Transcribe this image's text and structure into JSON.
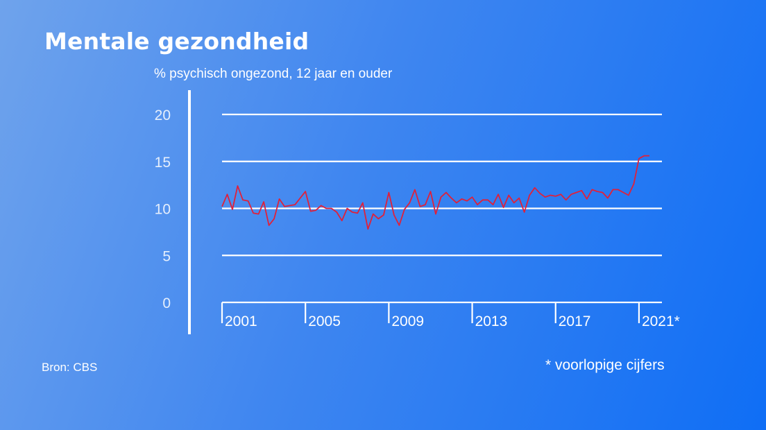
{
  "title": "Mentale gezondheid",
  "subtitle": "% psychisch ongezond, 12 jaar en ouder",
  "source": "Bron: CBS",
  "footnote": "* voorlopige cijfers",
  "colors": {
    "line": "#e0203a",
    "axis": "#ffffff"
  },
  "chart_data": {
    "type": "line",
    "title": "Mentale gezondheid",
    "ylabel": "% psychisch ongezond, 12 jaar en ouder",
    "xlabel": "",
    "ylim": [
      0,
      20
    ],
    "yticks": [
      0,
      5,
      10,
      15,
      20
    ],
    "xlim": [
      2001,
      2022.1
    ],
    "xtick_values": [
      2001,
      2005,
      2009,
      2013,
      2017,
      2021
    ],
    "xtick_labels": [
      "2001",
      "2005",
      "2009",
      "2013",
      "2017",
      "2021*"
    ],
    "grid": true,
    "series": [
      {
        "x": [
          2001.0,
          2001.25,
          2001.5,
          2001.75,
          2002.0,
          2002.25,
          2002.5,
          2002.75,
          2003.0,
          2003.25,
          2003.5,
          2003.75,
          2004.0,
          2004.25,
          2004.5,
          2004.75,
          2005.0,
          2005.25,
          2005.5,
          2005.75,
          2006.0,
          2006.25,
          2006.5,
          2006.75,
          2007.0,
          2007.25,
          2007.5,
          2007.75,
          2008.0,
          2008.25,
          2008.5,
          2008.75,
          2009.0,
          2009.25,
          2009.5,
          2009.75,
          2010.0,
          2010.25,
          2010.5,
          2010.75,
          2011.0,
          2011.25,
          2011.5,
          2011.75,
          2012.0,
          2012.25,
          2012.5,
          2012.75,
          2013.0,
          2013.25,
          2013.5,
          2013.75,
          2014.0,
          2014.25,
          2014.5,
          2014.75,
          2015.0,
          2015.25,
          2015.5,
          2015.75,
          2016.0,
          2016.25,
          2016.5,
          2016.75,
          2017.0,
          2017.25,
          2017.5,
          2017.75,
          2018.0,
          2018.25,
          2018.5,
          2018.75,
          2019.0,
          2019.25,
          2019.5,
          2019.75,
          2020.0,
          2020.25,
          2020.5,
          2020.75,
          2021.0,
          2021.25,
          2021.5
        ],
        "y": [
          10.2,
          11.5,
          9.9,
          12.4,
          10.9,
          10.8,
          9.5,
          9.4,
          10.7,
          8.2,
          8.9,
          11.0,
          10.2,
          10.3,
          10.4,
          11.1,
          11.8,
          9.7,
          9.8,
          10.3,
          10.0,
          10.0,
          9.6,
          8.7,
          10.0,
          9.6,
          9.5,
          10.6,
          7.8,
          9.4,
          8.9,
          9.3,
          11.7,
          9.3,
          8.2,
          9.9,
          10.6,
          12.0,
          10.2,
          10.4,
          11.8,
          9.4,
          11.2,
          11.7,
          11.1,
          10.6,
          11.0,
          10.8,
          11.2,
          10.4,
          10.9,
          10.9,
          10.4,
          11.5,
          10.1,
          11.4,
          10.6,
          11.1,
          9.6,
          11.4,
          12.2,
          11.6,
          11.2,
          11.4,
          11.3,
          11.5,
          10.9,
          11.5,
          11.7,
          11.9,
          11.0,
          12.0,
          11.8,
          11.7,
          11.1,
          12.0,
          12.0,
          11.7,
          11.4,
          12.6,
          15.3,
          15.6,
          15.6
        ]
      }
    ]
  }
}
